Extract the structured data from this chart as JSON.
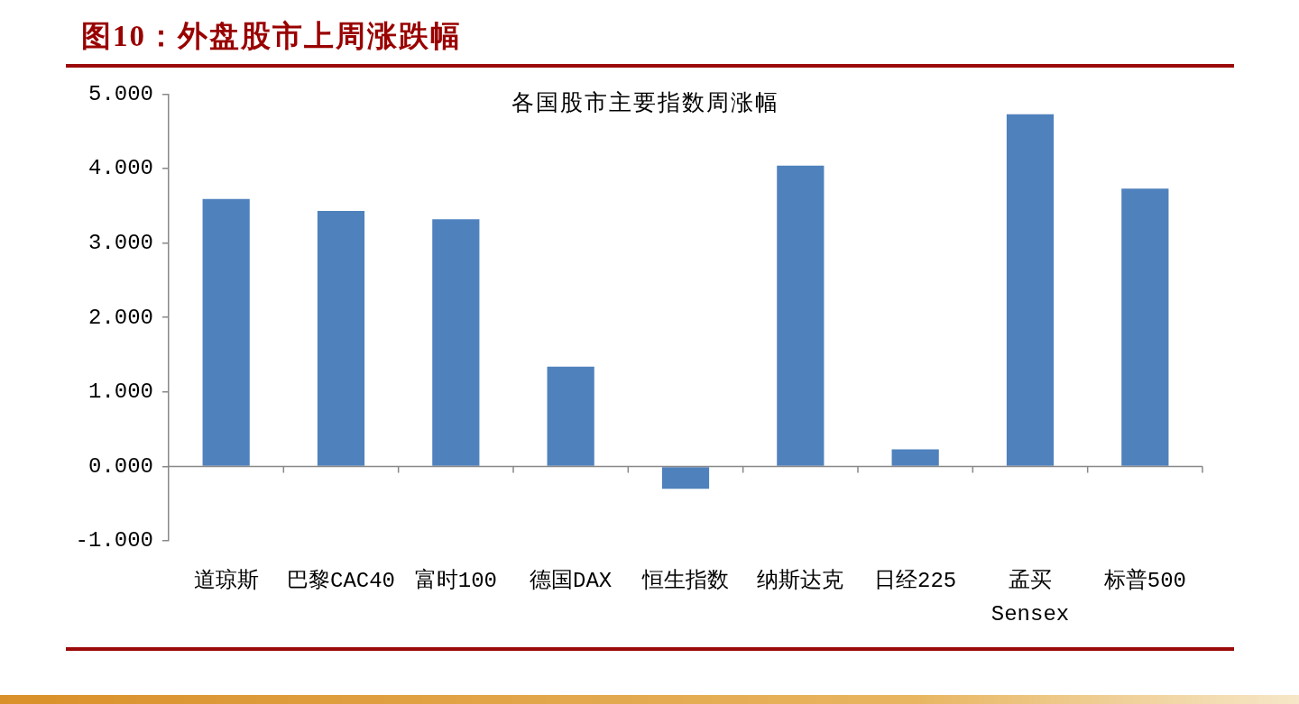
{
  "chart_data": {
    "type": "bar",
    "title": "图10：外盘股市上周涨跌幅",
    "subtitle": "各国股市主要指数周涨幅",
    "categories": [
      "道琼斯",
      "巴黎CAC40",
      "富时100",
      "德国DAX",
      "恒生指数",
      "纳斯达克",
      "日经225",
      "孟买Sensex",
      "标普500"
    ],
    "values": [
      3.59,
      3.43,
      3.32,
      1.34,
      -0.3,
      4.04,
      0.23,
      4.73,
      3.73
    ],
    "color": "#4f81bd",
    "ylim": [
      -1,
      5
    ],
    "yticks": [
      {
        "value": -1,
        "label": "-1.000"
      },
      {
        "value": 0,
        "label": "0.000"
      },
      {
        "value": 1,
        "label": "1.000"
      },
      {
        "value": 2,
        "label": "2.000"
      },
      {
        "value": 3,
        "label": "3.000"
      },
      {
        "value": 4,
        "label": "4.000"
      },
      {
        "value": 5,
        "label": "5.000"
      }
    ]
  }
}
